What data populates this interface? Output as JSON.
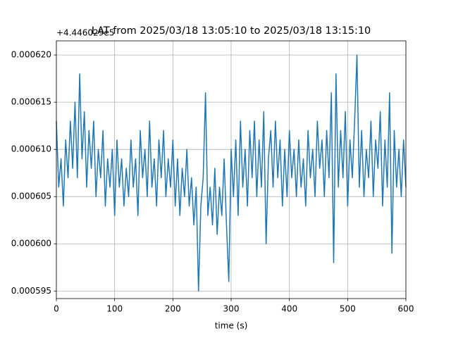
{
  "chart_data": {
    "type": "line",
    "title": "LAT from 2025/03/18 13:05:10 to 2025/03/18 13:15:10",
    "x_label": "time (s)",
    "y_offset_label": "+4.446029e5",
    "grid": true,
    "xlim": [
      0,
      600
    ],
    "xticks": [
      0,
      100,
      200,
      300,
      400,
      500,
      600
    ],
    "ylim": [
      0.0005942,
      0.0006215
    ],
    "yticks": [
      {
        "value": 0.000595,
        "label": "0.000595"
      },
      {
        "value": 0.0006,
        "label": "0.000600"
      },
      {
        "value": 0.000605,
        "label": "0.000605"
      },
      {
        "value": 0.00061,
        "label": "0.000610"
      },
      {
        "value": 0.000615,
        "label": "0.000615"
      },
      {
        "value": 0.00062,
        "label": "0.000620"
      }
    ],
    "x": [
      0,
      4,
      8,
      12,
      16,
      20,
      24,
      28,
      32,
      36,
      40,
      44,
      48,
      52,
      56,
      60,
      64,
      68,
      72,
      76,
      80,
      84,
      88,
      92,
      96,
      100,
      104,
      108,
      112,
      116,
      120,
      124,
      128,
      132,
      136,
      140,
      144,
      148,
      152,
      156,
      160,
      164,
      168,
      172,
      176,
      180,
      184,
      188,
      192,
      196,
      200,
      204,
      208,
      212,
      216,
      220,
      224,
      228,
      232,
      236,
      240,
      244,
      248,
      252,
      256,
      260,
      264,
      268,
      272,
      276,
      280,
      284,
      288,
      292,
      296,
      300,
      304,
      308,
      312,
      316,
      320,
      324,
      328,
      332,
      336,
      340,
      344,
      348,
      352,
      356,
      360,
      364,
      368,
      372,
      376,
      380,
      384,
      388,
      392,
      396,
      400,
      404,
      408,
      412,
      416,
      420,
      424,
      428,
      432,
      436,
      440,
      444,
      448,
      452,
      456,
      460,
      464,
      468,
      472,
      476,
      480,
      484,
      488,
      492,
      496,
      500,
      504,
      508,
      512,
      516,
      520,
      524,
      528,
      532,
      536,
      540,
      544,
      548,
      552,
      556,
      560,
      564,
      568,
      572,
      576,
      580,
      584,
      588,
      592,
      596,
      600
    ],
    "series": [
      {
        "name": "LAT",
        "color": "#1f77b4",
        "values": [
          0.000613,
          0.000606,
          0.000609,
          0.000604,
          0.000611,
          0.000607,
          0.000613,
          0.000608,
          0.000615,
          0.000607,
          0.000618,
          0.000609,
          0.000614,
          0.000606,
          0.000612,
          0.000608,
          0.000613,
          0.000605,
          0.00061,
          0.000607,
          0.000612,
          0.000604,
          0.000609,
          0.000606,
          0.00061,
          0.000603,
          0.000611,
          0.000606,
          0.000609,
          0.000604,
          0.000608,
          0.000605,
          0.000611,
          0.000606,
          0.000609,
          0.000603,
          0.000612,
          0.000607,
          0.00061,
          0.000605,
          0.000613,
          0.000606,
          0.000609,
          0.000604,
          0.000611,
          0.000607,
          0.000612,
          0.000605,
          0.000609,
          0.000606,
          0.000611,
          0.000604,
          0.000609,
          0.000603,
          0.000608,
          0.000605,
          0.00061,
          0.000604,
          0.000607,
          0.000602,
          0.000606,
          0.000595,
          0.000604,
          0.000607,
          0.000616,
          0.000603,
          0.000606,
          0.000602,
          0.000608,
          0.000601,
          0.000606,
          0.000603,
          0.000609,
          0.000602,
          0.000596,
          0.00061,
          0.000605,
          0.000611,
          0.000603,
          0.000613,
          0.000606,
          0.00061,
          0.000604,
          0.000612,
          0.000607,
          0.000613,
          0.000605,
          0.000611,
          0.000606,
          0.000614,
          0.0006,
          0.000609,
          0.000612,
          0.000606,
          0.000613,
          0.000607,
          0.000611,
          0.000604,
          0.00061,
          0.000605,
          0.000612,
          0.000607,
          0.00061,
          0.000605,
          0.000611,
          0.000606,
          0.000609,
          0.000604,
          0.000612,
          0.000607,
          0.00061,
          0.000605,
          0.000613,
          0.000608,
          0.000611,
          0.000605,
          0.000612,
          0.000607,
          0.000616,
          0.000598,
          0.000618,
          0.000606,
          0.000612,
          0.000607,
          0.000614,
          0.000604,
          0.000611,
          0.000607,
          0.000613,
          0.00062,
          0.000606,
          0.000612,
          0.000605,
          0.00061,
          0.000607,
          0.000613,
          0.000605,
          0.000611,
          0.000608,
          0.000614,
          0.000604,
          0.000611,
          0.000606,
          0.000616,
          0.000599,
          0.000612,
          0.000606,
          0.00061,
          0.000605,
          0.000611,
          0.000606
        ]
      }
    ]
  }
}
